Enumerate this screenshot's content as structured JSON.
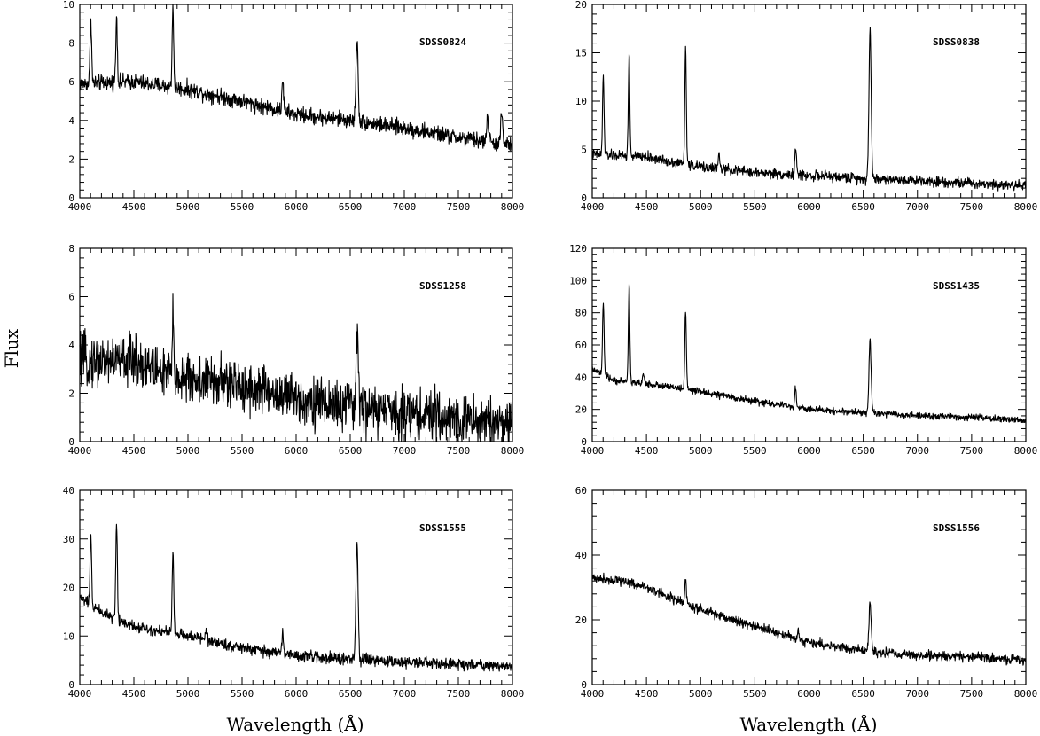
{
  "figure": {
    "ylabel": "Flux",
    "xlabel_left": "Wavelength (Å)",
    "xlabel_right": "Wavelength (Å)"
  },
  "chart_data": [
    {
      "type": "line",
      "label": "SDSS0824",
      "xlim": [
        4000,
        8000
      ],
      "ylim": [
        0,
        10
      ],
      "xticks": [
        4000,
        4500,
        5000,
        5500,
        6000,
        6500,
        7000,
        7500,
        8000
      ],
      "yticks": [
        0,
        2,
        4,
        6,
        8,
        10
      ],
      "continuum": [
        [
          4000,
          5.9
        ],
        [
          4500,
          6.0
        ],
        [
          5000,
          5.6
        ],
        [
          5500,
          5.0
        ],
        [
          6000,
          4.3
        ],
        [
          6500,
          4.0
        ],
        [
          7000,
          3.6
        ],
        [
          7500,
          3.1
        ],
        [
          8000,
          2.7
        ]
      ],
      "emission_lines": [
        [
          4102,
          3.4
        ],
        [
          4340,
          3.4
        ],
        [
          4861,
          4.2
        ],
        [
          5876,
          1.8
        ],
        [
          6563,
          4.2
        ],
        [
          7770,
          1.2
        ],
        [
          7900,
          1.4
        ]
      ],
      "noise": 0.35
    },
    {
      "type": "line",
      "label": "SDSS0838",
      "xlim": [
        4000,
        8000
      ],
      "ylim": [
        0,
        20
      ],
      "xticks": [
        4000,
        4500,
        5000,
        5500,
        6000,
        6500,
        7000,
        7500,
        8000
      ],
      "yticks": [
        0,
        5,
        10,
        15,
        20
      ],
      "continuum": [
        [
          4000,
          4.5
        ],
        [
          4500,
          4.2
        ],
        [
          5000,
          3.2
        ],
        [
          5500,
          2.6
        ],
        [
          6000,
          2.3
        ],
        [
          6500,
          2.0
        ],
        [
          7000,
          1.8
        ],
        [
          7500,
          1.5
        ],
        [
          8000,
          1.3
        ]
      ],
      "emission_lines": [
        [
          4102,
          8.0
        ],
        [
          4340,
          10.5
        ],
        [
          4861,
          12.0
        ],
        [
          5876,
          3.0
        ],
        [
          6563,
          15.5
        ],
        [
          5169,
          1.5
        ]
      ],
      "noise": 0.45
    },
    {
      "type": "line",
      "label": "SDSS1258",
      "xlim": [
        4000,
        8000
      ],
      "ylim": [
        0,
        8
      ],
      "xticks": [
        4000,
        4500,
        5000,
        5500,
        6000,
        6500,
        7000,
        7500,
        8000
      ],
      "yticks": [
        0,
        2,
        4,
        6,
        8
      ],
      "continuum": [
        [
          4000,
          3.3
        ],
        [
          4500,
          3.4
        ],
        [
          4800,
          2.8
        ],
        [
          5000,
          2.6
        ],
        [
          5500,
          2.3
        ],
        [
          6000,
          1.8
        ],
        [
          6500,
          1.4
        ],
        [
          7000,
          1.2
        ],
        [
          7500,
          0.9
        ],
        [
          8000,
          0.8
        ]
      ],
      "emission_lines": [
        [
          4861,
          2.2
        ],
        [
          6563,
          3.4
        ]
      ],
      "noise": 0.9
    },
    {
      "type": "line",
      "label": "SDSS1435",
      "xlim": [
        4000,
        8000
      ],
      "ylim": [
        0,
        120
      ],
      "xticks": [
        4000,
        4500,
        5000,
        5500,
        6000,
        6500,
        7000,
        7500,
        8000
      ],
      "yticks": [
        0,
        20,
        40,
        60,
        80,
        100,
        120
      ],
      "continuum": [
        [
          4000,
          45
        ],
        [
          4200,
          38
        ],
        [
          4500,
          36
        ],
        [
          5000,
          31
        ],
        [
          5500,
          25
        ],
        [
          6000,
          20
        ],
        [
          6500,
          18
        ],
        [
          7000,
          16
        ],
        [
          7500,
          15
        ],
        [
          8000,
          13
        ]
      ],
      "emission_lines": [
        [
          4102,
          45
        ],
        [
          4340,
          60
        ],
        [
          4861,
          50
        ],
        [
          5876,
          13
        ],
        [
          6563,
          45
        ],
        [
          4471,
          6
        ]
      ],
      "noise": 1.8
    },
    {
      "type": "line",
      "label": "SDSS1555",
      "xlim": [
        4000,
        8000
      ],
      "ylim": [
        0,
        40
      ],
      "xticks": [
        4000,
        4500,
        5000,
        5500,
        6000,
        6500,
        7000,
        7500,
        8000
      ],
      "yticks": [
        0,
        10,
        20,
        30,
        40
      ],
      "continuum": [
        [
          4000,
          18
        ],
        [
          4200,
          15
        ],
        [
          4500,
          12
        ],
        [
          5000,
          10
        ],
        [
          5500,
          7.5
        ],
        [
          6000,
          6.0
        ],
        [
          6500,
          5.2
        ],
        [
          7000,
          4.6
        ],
        [
          7500,
          4.2
        ],
        [
          8000,
          3.8
        ]
      ],
      "emission_lines": [
        [
          4102,
          14
        ],
        [
          4340,
          20
        ],
        [
          4861,
          17
        ],
        [
          5876,
          5
        ],
        [
          6563,
          24
        ],
        [
          5169,
          2.5
        ]
      ],
      "noise": 1.0
    },
    {
      "type": "line",
      "label": "SDSS1556",
      "xlim": [
        4000,
        8000
      ],
      "ylim": [
        0,
        60
      ],
      "xticks": [
        4000,
        4500,
        5000,
        5500,
        6000,
        6500,
        7000,
        7500,
        8000
      ],
      "yticks": [
        0,
        20,
        40,
        60
      ],
      "continuum": [
        [
          4000,
          33
        ],
        [
          4300,
          32
        ],
        [
          4500,
          30
        ],
        [
          5000,
          23
        ],
        [
          5500,
          18
        ],
        [
          6000,
          13
        ],
        [
          6500,
          10.5
        ],
        [
          7000,
          9
        ],
        [
          7500,
          8.5
        ],
        [
          8000,
          7.5
        ]
      ],
      "emission_lines": [
        [
          4861,
          8
        ],
        [
          6563,
          15
        ],
        [
          5900,
          3
        ]
      ],
      "noise": 1.3
    }
  ]
}
